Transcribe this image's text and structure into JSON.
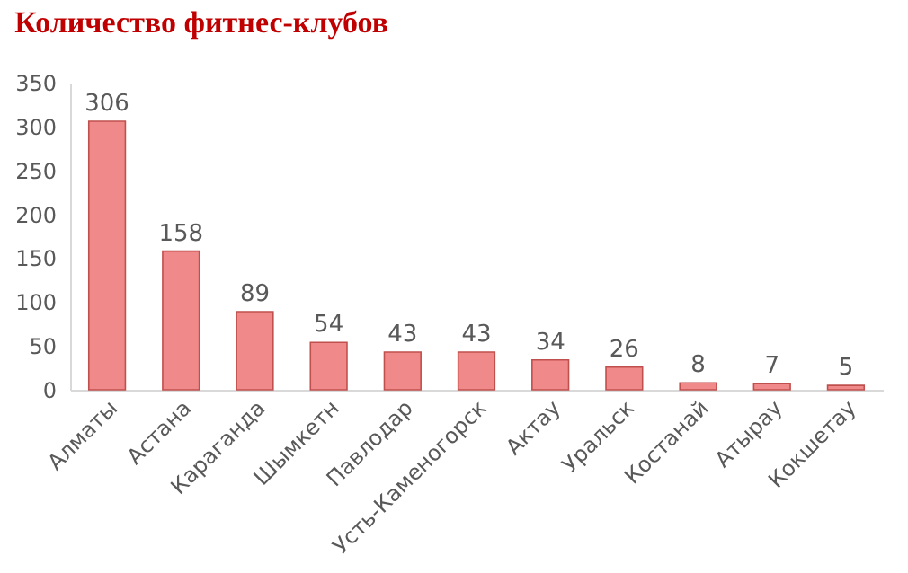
{
  "chart_data": {
    "type": "bar",
    "title": "Количество фитнес-клубов",
    "categories": [
      "Алматы",
      "Астана",
      "Караганда",
      "Шымкетн",
      "Павлодар",
      "Усть-Каменогорск",
      "Актау",
      "Уральск",
      "Костанай",
      "Атырау",
      "Кокшетау"
    ],
    "values": [
      306,
      158,
      89,
      54,
      43,
      43,
      34,
      26,
      8,
      7,
      5
    ],
    "color": "#f08a8a",
    "ylim": [
      0,
      350
    ],
    "yticks": [
      0,
      50,
      100,
      150,
      200,
      250,
      300,
      350
    ],
    "grid": false,
    "data_labels": true
  }
}
